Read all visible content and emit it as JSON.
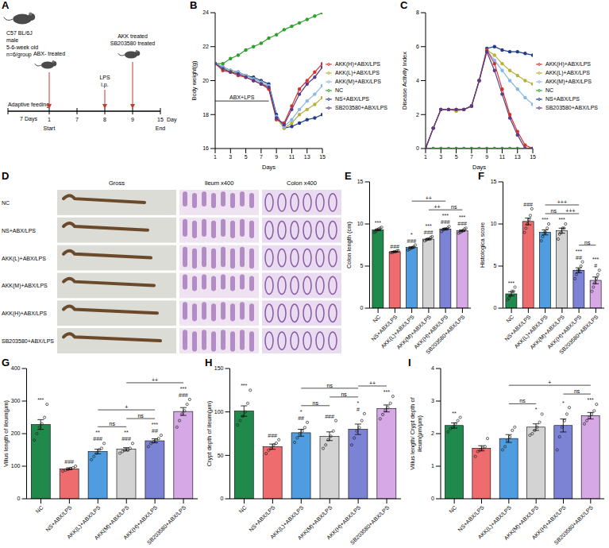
{
  "diagram_A": {
    "panel": "A",
    "subject": [
      "C57 BL/6J",
      "male",
      "5-6-week old",
      "n=6/group"
    ],
    "phase": {
      "label": "Adaptive feeding",
      "duration": "7 Days"
    },
    "days": [
      1,
      7,
      8,
      9,
      15
    ],
    "day_unit": "Day",
    "start": "Start",
    "end": "End",
    "events": [
      {
        "day": 1,
        "texts": [
          "ABX- treated"
        ]
      },
      {
        "day": 8,
        "texts": [
          "LPS",
          "i.p."
        ]
      },
      {
        "day": 9,
        "texts": [
          "AKK treated",
          "SB203580 treated"
        ]
      }
    ]
  },
  "panel_D": {
    "panel": "D",
    "columns": [
      "Gross",
      "Ileum x400",
      "Colon x400"
    ],
    "rows": [
      "NC",
      "NS+ABX/LPS",
      "AKK(L)+ABX/LPS",
      "AKK(M)+ABX/LPS",
      "AKK(H)+ABX/LPS",
      "SB203580+ABX/LPS"
    ]
  },
  "chart_data": [
    {
      "panel": "B",
      "type": "line",
      "y_label": "Body weight(g)",
      "x_label": "Days",
      "x": [
        1,
        2,
        3,
        4,
        5,
        6,
        7,
        8,
        9,
        10,
        11,
        12,
        13,
        14,
        15
      ],
      "xlim": [
        1,
        15
      ],
      "xticks": [
        1,
        3,
        5,
        7,
        9,
        11,
        13,
        15
      ],
      "ylim": [
        16,
        24
      ],
      "yticks": [
        16,
        18,
        20,
        22,
        24
      ],
      "legend": "right",
      "marker": "circle",
      "annotations": [
        {
          "text": "ABX+LPS",
          "x": [
            1,
            8
          ],
          "y": 18.8
        }
      ],
      "series": [
        {
          "name": "NC",
          "color": "#2ca02c",
          "values": [
            21,
            21,
            21.3,
            21.5,
            21.8,
            22,
            22.2,
            22.5,
            22.7,
            23,
            23.2,
            23.4,
            23.6,
            23.8,
            24
          ]
        },
        {
          "name": "NS+ABX/LPS",
          "color": "#1f3b8c",
          "values": [
            21,
            20.8,
            20.6,
            20.5,
            20.3,
            20.2,
            20,
            19.8,
            18,
            17.2,
            17.3,
            17.5,
            17.7,
            17.8,
            18
          ]
        },
        {
          "name": "AKK(L)+ABX/LPS",
          "color": "#b8b13c",
          "values": [
            21,
            20.7,
            20.6,
            20.4,
            20.3,
            20.1,
            19.9,
            19.6,
            17.8,
            17.2,
            17.5,
            18,
            18.3,
            18.6,
            19
          ]
        },
        {
          "name": "AKK(M)+ABX/LPS",
          "color": "#86b7e6",
          "values": [
            21,
            20.8,
            20.6,
            20.5,
            20.3,
            20.1,
            19.9,
            19.7,
            17.9,
            17.3,
            17.7,
            18.3,
            18.8,
            19.2,
            19.7
          ]
        },
        {
          "name": "AKK(H)+ABX/LPS",
          "color": "#d7312a",
          "values": [
            21,
            20.6,
            20.5,
            20.3,
            20.2,
            20,
            19.8,
            19.5,
            17.7,
            17.5,
            18.5,
            19.5,
            20,
            20.5,
            21
          ]
        },
        {
          "name": "SB203580+ABX/LPS",
          "color": "#5a3a8a",
          "values": [
            21,
            20.7,
            20.5,
            20.4,
            20.2,
            20,
            19.8,
            19.6,
            17.8,
            17.4,
            18.3,
            19.2,
            19.8,
            20.2,
            20.8
          ]
        }
      ]
    },
    {
      "panel": "C",
      "type": "line",
      "y_label": "Disease Activity Index",
      "x_label": "Days",
      "x": [
        1,
        2,
        3,
        4,
        5,
        6,
        7,
        8,
        9,
        10,
        11,
        12,
        13,
        14,
        15
      ],
      "xlim": [
        1,
        15
      ],
      "xticks": [
        1,
        3,
        5,
        7,
        9,
        11,
        13,
        15
      ],
      "ylim": [
        0,
        8
      ],
      "yticks": [
        0,
        2,
        4,
        6,
        8
      ],
      "legend": "right",
      "marker": "circle",
      "series": [
        {
          "name": "NC",
          "color": "#2ca02c",
          "values": [
            0,
            0,
            0,
            0,
            0,
            0,
            0,
            0,
            0,
            0,
            0,
            0,
            0,
            0,
            0
          ]
        },
        {
          "name": "NS+ABX/LPS",
          "color": "#1f3b8c",
          "values": [
            0,
            1.2,
            2.3,
            2.3,
            2.3,
            2.3,
            2.5,
            4,
            5.9,
            6,
            5.8,
            5.7,
            5.7,
            5.6,
            5.5
          ]
        },
        {
          "name": "AKK(L)+ABX/LPS",
          "color": "#b8b13c",
          "values": [
            0,
            1.2,
            2.3,
            2.3,
            2.2,
            2.3,
            2.5,
            4,
            5.8,
            5.5,
            5,
            4.6,
            4.3,
            4,
            3.8
          ]
        },
        {
          "name": "AKK(M)+ABX/LPS",
          "color": "#86b7e6",
          "values": [
            0,
            1.2,
            2.3,
            2.3,
            2.3,
            2.3,
            2.5,
            4,
            5.8,
            5.2,
            4.6,
            4,
            3.5,
            3,
            2.6
          ]
        },
        {
          "name": "AKK(H)+ABX/LPS",
          "color": "#d7312a",
          "values": [
            0,
            1.2,
            2.3,
            2.3,
            2.3,
            2.3,
            2.5,
            4,
            5.8,
            5,
            3.5,
            2,
            1,
            0.2,
            0
          ]
        },
        {
          "name": "SB203580+ABX/LPS",
          "color": "#5a3a8a",
          "values": [
            0,
            1.2,
            2.3,
            2.3,
            2.3,
            2.3,
            2.5,
            4,
            5.7,
            4.6,
            3.2,
            1.8,
            0.8,
            0,
            0
          ]
        }
      ]
    },
    {
      "panel": "E",
      "type": "bar",
      "y_label": "Colon length (cm)",
      "categories": [
        "NC",
        "NS+ABX/LPS",
        "AKK(L)+ABX/LPS",
        "AKK(M)+ABX/LPS",
        "AKK(H)+ABX/LPS",
        "SB203580+ABX/LPS"
      ],
      "colors": [
        "#1f8a4c",
        "#ee6b6e",
        "#4f9de0",
        "#d3d3d3",
        "#7c83d4",
        "#d6a8e6"
      ],
      "ylim": [
        0,
        15
      ],
      "yticks": [
        0,
        5,
        10,
        15
      ],
      "values": [
        9.3,
        6.7,
        7.2,
        8.2,
        9.4,
        9.2
      ],
      "errors": [
        0.1,
        0.04,
        0.09,
        0.08,
        0.09,
        0.09
      ],
      "points": [
        [
          9.0,
          9.1,
          9.3,
          9.4,
          9.5,
          9.6
        ],
        [
          6.6,
          6.6,
          6.7,
          6.7,
          6.8,
          6.8
        ],
        [
          6.9,
          7.0,
          7.1,
          7.2,
          7.3,
          7.5
        ],
        [
          8.0,
          8.1,
          8.2,
          8.2,
          8.4,
          8.5
        ],
        [
          9.1,
          9.3,
          9.4,
          9.4,
          9.5,
          9.7
        ],
        [
          8.9,
          9.0,
          9.1,
          9.2,
          9.4,
          9.5
        ]
      ],
      "annotations": [
        [
          "***"
        ],
        [
          "###"
        ],
        [
          "*",
          "###"
        ],
        [
          "***",
          "###"
        ],
        [
          "***",
          "###"
        ],
        [
          "***",
          "###"
        ]
      ],
      "comparisons": [
        {
          "from": "AKK(M)+ABX/LPS",
          "to": "AKK(H)+ABX/LPS",
          "label": "++"
        },
        {
          "from": "AKK(H)+ABX/LPS",
          "to": "SB203580+ABX/LPS",
          "label": "ns"
        },
        {
          "from": "AKK(L)+ABX/LPS",
          "to": "AKK(H)+ABX/LPS",
          "label": "++"
        }
      ]
    },
    {
      "panel": "F",
      "type": "bar",
      "y_label": "Histologica score",
      "categories": [
        "NC",
        "NS+ABX/LPS",
        "AKK(L)+ABX/LPS",
        "AKK(M)+ABX/LPS",
        "AKK(H)+ABX/LPS",
        "SB203580+ABX/LPS"
      ],
      "colors": [
        "#1f8a4c",
        "#ee6b6e",
        "#4f9de0",
        "#d3d3d3",
        "#7c83d4",
        "#d6a8e6"
      ],
      "ylim": [
        0,
        15
      ],
      "yticks": [
        0,
        5,
        10,
        15
      ],
      "values": [
        1.7,
        10.3,
        9.0,
        9.2,
        4.5,
        3.3
      ],
      "errors": [
        0.25,
        0.4,
        0.3,
        0.3,
        0.3,
        0.4
      ],
      "points": [
        [
          1,
          1.2,
          1.5,
          2,
          2,
          2.5
        ],
        [
          9,
          9.5,
          10,
          10.5,
          11,
          11.8
        ],
        [
          8,
          8.5,
          9,
          9,
          9.5,
          10
        ],
        [
          8.2,
          8.8,
          9,
          9.5,
          9.5,
          10
        ],
        [
          3.5,
          4,
          4.5,
          4.5,
          5,
          5.5
        ],
        [
          2,
          2.5,
          3,
          3.5,
          4,
          4.5
        ]
      ],
      "annotations": [
        [
          "***"
        ],
        [
          "###"
        ],
        [
          "***"
        ],
        [
          "***"
        ],
        [
          "***",
          "##"
        ],
        [
          "***",
          "#"
        ]
      ],
      "comparisons": [
        {
          "from": "AKK(L)+ABX/LPS",
          "to": "AKK(M)+ABX/LPS",
          "label": "ns"
        },
        {
          "from": "AKK(M)+ABX/LPS",
          "to": "AKK(H)+ABX/LPS",
          "label": "+++"
        },
        {
          "from": "AKK(H)+ABX/LPS",
          "to": "SB203580+ABX/LPS",
          "label": "ns"
        },
        {
          "from": "AKK(L)+ABX/LPS",
          "to": "AKK(H)+ABX/LPS",
          "label": "+++"
        }
      ]
    },
    {
      "panel": "G",
      "type": "bar",
      "y_label": "Villus length of ileum(μm)",
      "categories": [
        "NC",
        "NS+ABX/LPS",
        "AKK(L)+ABX/LPS",
        "AKK(M)+ABX/LPS",
        "AKK(H)+ABX/LPS",
        "SB203580+ABX/LPS"
      ],
      "colors": [
        "#1f8a4c",
        "#ee6b6e",
        "#4f9de0",
        "#d3d3d3",
        "#7c83d4",
        "#d6a8e6"
      ],
      "ylim": [
        0,
        400
      ],
      "yticks": [
        0,
        100,
        200,
        300,
        400
      ],
      "values": [
        228,
        92,
        145,
        152,
        178,
        268
      ],
      "errors": [
        15,
        3,
        7,
        5,
        6,
        12
      ],
      "points": [
        [
          180,
          200,
          220,
          230,
          250,
          290
        ],
        [
          85,
          88,
          90,
          93,
          95,
          100
        ],
        [
          120,
          130,
          140,
          150,
          155,
          170
        ],
        [
          140,
          145,
          150,
          150,
          155,
          170
        ],
        [
          160,
          170,
          175,
          180,
          185,
          195
        ],
        [
          220,
          240,
          260,
          270,
          290,
          305
        ]
      ],
      "annotations": [
        [
          "***"
        ],
        [
          "###"
        ],
        [
          "**",
          "###"
        ],
        [
          "**",
          "###"
        ],
        [
          "***",
          "##"
        ],
        [
          "***",
          "###"
        ]
      ],
      "comparisons": [
        {
          "from": "AKK(L)+ABX/LPS",
          "to": "AKK(M)+ABX/LPS",
          "label": "ns"
        },
        {
          "from": "AKK(M)+ABX/LPS",
          "to": "AKK(H)+ABX/LPS",
          "label": "ns"
        },
        {
          "from": "AKK(L)+ABX/LPS",
          "to": "AKK(H)+ABX/LPS",
          "label": "+"
        },
        {
          "from": "AKK(M)+ABX/LPS",
          "to": "SB203580+ABX/LPS",
          "label": "++"
        }
      ]
    },
    {
      "panel": "H",
      "type": "bar",
      "y_label": "Crypt depth of ileum(μm)",
      "categories": [
        "NC",
        "NS+ABX/LPS",
        "AKK(L)+ABX/LPS",
        "AKK(M)+ABX/LPS",
        "AKK(H)+ABX/LPS",
        "SB203580+ABX/LPS"
      ],
      "colors": [
        "#1f8a4c",
        "#ee6b6e",
        "#4f9de0",
        "#d3d3d3",
        "#7c83d4",
        "#d6a8e6"
      ],
      "ylim": [
        0,
        150
      ],
      "yticks": [
        0,
        50,
        100,
        150
      ],
      "values": [
        101,
        60,
        76,
        72,
        80,
        104
      ],
      "errors": [
        6,
        3,
        4,
        5,
        6,
        4
      ],
      "points": [
        [
          85,
          90,
          95,
          100,
          110,
          125
        ],
        [
          52,
          56,
          58,
          62,
          64,
          68
        ],
        [
          65,
          70,
          75,
          78,
          82,
          88
        ],
        [
          58,
          62,
          68,
          72,
          78,
          90
        ],
        [
          62,
          70,
          78,
          82,
          90,
          98
        ],
        [
          92,
          97,
          102,
          105,
          110,
          118
        ]
      ],
      "annotations": [
        [
          "***"
        ],
        [
          "###"
        ],
        [
          "*",
          "##"
        ],
        [
          "###"
        ],
        [
          "*",
          "#"
        ],
        [
          "***"
        ]
      ],
      "comparisons": [
        {
          "from": "AKK(L)+ABX/LPS",
          "to": "AKK(M)+ABX/LPS",
          "label": "ns"
        },
        {
          "from": "AKK(M)+ABX/LPS",
          "to": "AKK(H)+ABX/LPS",
          "label": "ns"
        },
        {
          "from": "AKK(H)+ABX/LPS",
          "to": "SB203580+ABX/LPS",
          "label": "++"
        },
        {
          "from": "AKK(L)+ABX/LPS",
          "to": "AKK(H)+ABX/LPS",
          "label": "ns"
        }
      ]
    },
    {
      "panel": "I",
      "type": "bar",
      "y_label": "Villus length/ Crypt depth of ileum(μm/μm)",
      "categories": [
        "NC",
        "NS+ABX/LPS",
        "AKK(L)+ABX/LPS",
        "AKK(M)+ABX/LPS",
        "AKK(H)+ABX/LPS",
        "SB203580+ABX/LPS"
      ],
      "colors": [
        "#1f8a4c",
        "#ee6b6e",
        "#4f9de0",
        "#d3d3d3",
        "#7c83d4",
        "#d6a8e6"
      ],
      "ylim": [
        0,
        4
      ],
      "yticks": [
        0,
        1,
        2,
        3,
        4
      ],
      "values": [
        2.25,
        1.55,
        1.85,
        2.2,
        2.25,
        2.55
      ],
      "errors": [
        0.08,
        0.08,
        0.12,
        0.1,
        0.2,
        0.1
      ],
      "points": [
        [
          2.05,
          2.15,
          2.2,
          2.3,
          2.4,
          2.5
        ],
        [
          1.3,
          1.45,
          1.5,
          1.55,
          1.6,
          1.85
        ],
        [
          1.5,
          1.6,
          1.8,
          1.9,
          2.1,
          2.2
        ],
        [
          1.95,
          2.0,
          2.1,
          2.2,
          2.35,
          2.6
        ],
        [
          1.5,
          1.9,
          2.2,
          2.4,
          2.6,
          2.8
        ],
        [
          2.3,
          2.4,
          2.5,
          2.6,
          2.7,
          2.9
        ]
      ],
      "annotations": [
        [
          "**"
        ],
        [],
        [],
        [
          "*"
        ],
        [
          "*"
        ],
        [
          "***"
        ]
      ],
      "comparisons": [
        {
          "from": "AKK(L)+ABX/LPS",
          "to": "AKK(M)+ABX/LPS",
          "label": "ns"
        },
        {
          "from": "AKK(H)+ABX/LPS",
          "to": "SB203580+ABX/LPS",
          "label": "ns"
        },
        {
          "from": "AKK(L)+ABX/LPS",
          "to": "SB203580+ABX/LPS",
          "label": "+"
        }
      ]
    }
  ]
}
